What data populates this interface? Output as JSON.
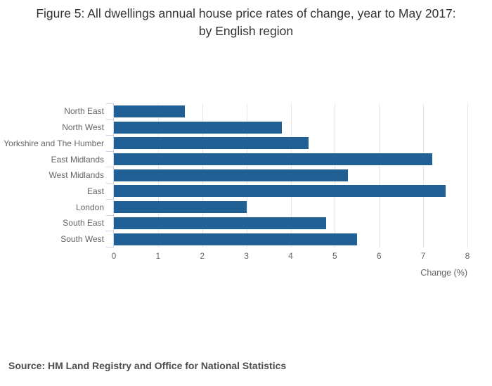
{
  "chart_data": {
    "type": "bar",
    "orientation": "horizontal",
    "title": "Figure 5: All dwellings annual house price rates of change, year to May 2017: by English region",
    "categories": [
      "North East",
      "North West",
      "Yorkshire and The Humber",
      "East Midlands",
      "West Midlands",
      "East",
      "London",
      "South East",
      "South West"
    ],
    "values": [
      1.6,
      3.8,
      4.4,
      7.2,
      5.3,
      7.5,
      3.0,
      4.8,
      5.5
    ],
    "xlabel": "Change (%)",
    "xlim": [
      0,
      8
    ],
    "xticks": [
      0,
      1,
      2,
      3,
      4,
      5,
      6,
      7,
      8
    ],
    "grid": true,
    "legend": "none",
    "source": "Source: HM Land Registry and Office for National Statistics",
    "colors": {
      "bar": "#206095",
      "gridline": "#e6e6e6",
      "axis_line": "#ccd6eb",
      "tick_label": "#666666",
      "title": "#333333",
      "source_text": "#4d4d4d"
    }
  }
}
